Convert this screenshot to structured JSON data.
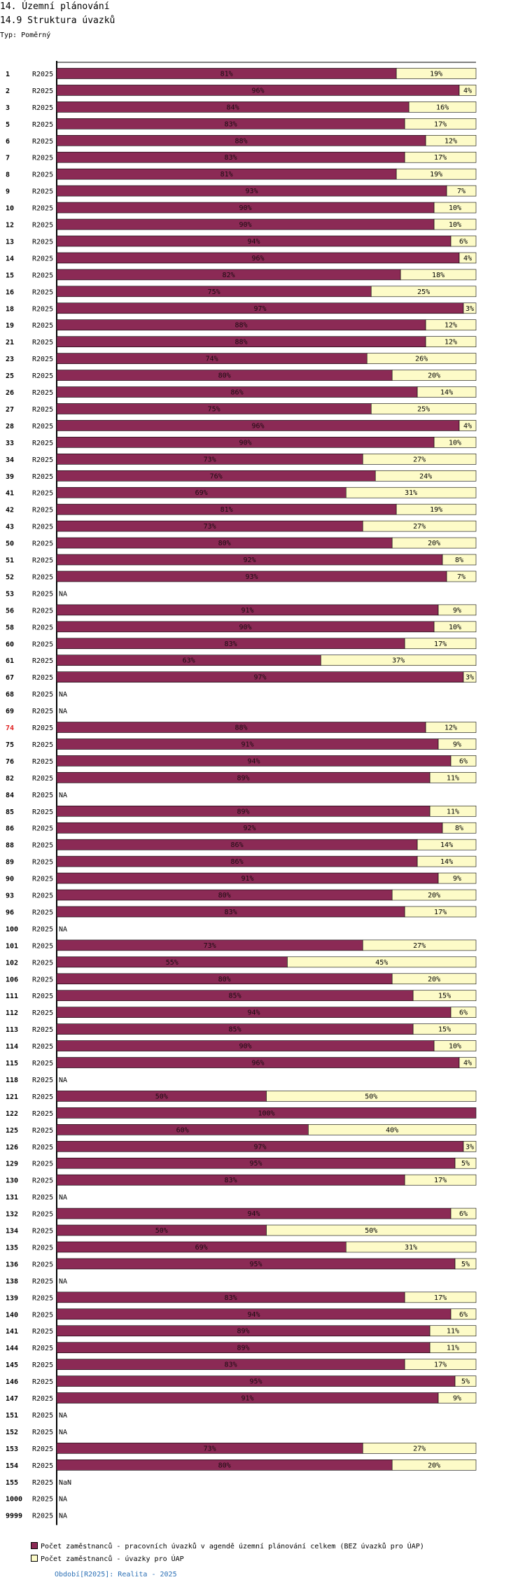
{
  "header": {
    "title": "14. Územní plánování",
    "subtitle": "14.9 Struktura úvazků",
    "type_label": "Typ: Poměrný"
  },
  "colors": {
    "series1": "#8b2a55",
    "series2": "#fdfbc8",
    "highlight_label": "#e02020",
    "footer": "#2a6fb5",
    "axis": "#000000"
  },
  "chart_data": {
    "type": "bar",
    "orientation": "horizontal",
    "stacked": "percent",
    "title": "14.9 Struktura úvazků",
    "xlim": [
      0,
      100
    ],
    "period": "R2025",
    "highlight_category": "74",
    "series": [
      {
        "name": "Počet zaměstnanců - pracovních úvazků v agendě územní plánování celkem (BEZ úvazků pro ÚAP)"
      },
      {
        "name": "Počet zaměstnanců - úvazky pro ÚAP"
      }
    ],
    "rows": [
      {
        "category": "1",
        "period": "R2025",
        "values": [
          81,
          19
        ]
      },
      {
        "category": "2",
        "period": "R2025",
        "values": [
          96,
          4
        ]
      },
      {
        "category": "3",
        "period": "R2025",
        "values": [
          84,
          16
        ]
      },
      {
        "category": "5",
        "period": "R2025",
        "values": [
          83,
          17
        ]
      },
      {
        "category": "6",
        "period": "R2025",
        "values": [
          88,
          12
        ]
      },
      {
        "category": "7",
        "period": "R2025",
        "values": [
          83,
          17
        ]
      },
      {
        "category": "8",
        "period": "R2025",
        "values": [
          81,
          19
        ]
      },
      {
        "category": "9",
        "period": "R2025",
        "values": [
          93,
          7
        ]
      },
      {
        "category": "10",
        "period": "R2025",
        "values": [
          90,
          10
        ]
      },
      {
        "category": "12",
        "period": "R2025",
        "values": [
          90,
          10
        ]
      },
      {
        "category": "13",
        "period": "R2025",
        "values": [
          94,
          6
        ]
      },
      {
        "category": "14",
        "period": "R2025",
        "values": [
          96,
          4
        ]
      },
      {
        "category": "15",
        "period": "R2025",
        "values": [
          82,
          18
        ]
      },
      {
        "category": "16",
        "period": "R2025",
        "values": [
          75,
          25
        ]
      },
      {
        "category": "18",
        "period": "R2025",
        "values": [
          97,
          3
        ]
      },
      {
        "category": "19",
        "period": "R2025",
        "values": [
          88,
          12
        ]
      },
      {
        "category": "21",
        "period": "R2025",
        "values": [
          88,
          12
        ]
      },
      {
        "category": "23",
        "period": "R2025",
        "values": [
          74,
          26
        ]
      },
      {
        "category": "25",
        "period": "R2025",
        "values": [
          80,
          20
        ]
      },
      {
        "category": "26",
        "period": "R2025",
        "values": [
          86,
          14
        ]
      },
      {
        "category": "27",
        "period": "R2025",
        "values": [
          75,
          25
        ]
      },
      {
        "category": "28",
        "period": "R2025",
        "values": [
          96,
          4
        ]
      },
      {
        "category": "33",
        "period": "R2025",
        "values": [
          90,
          10
        ]
      },
      {
        "category": "34",
        "period": "R2025",
        "values": [
          73,
          27
        ]
      },
      {
        "category": "39",
        "period": "R2025",
        "values": [
          76,
          24
        ]
      },
      {
        "category": "41",
        "period": "R2025",
        "values": [
          69,
          31
        ]
      },
      {
        "category": "42",
        "period": "R2025",
        "values": [
          81,
          19
        ]
      },
      {
        "category": "43",
        "period": "R2025",
        "values": [
          73,
          27
        ]
      },
      {
        "category": "50",
        "period": "R2025",
        "values": [
          80,
          20
        ]
      },
      {
        "category": "51",
        "period": "R2025",
        "values": [
          92,
          8
        ]
      },
      {
        "category": "52",
        "period": "R2025",
        "values": [
          93,
          7
        ]
      },
      {
        "category": "53",
        "period": "R2025",
        "values": null,
        "na": "NA"
      },
      {
        "category": "56",
        "period": "R2025",
        "values": [
          91,
          9
        ]
      },
      {
        "category": "58",
        "period": "R2025",
        "values": [
          90,
          10
        ]
      },
      {
        "category": "60",
        "period": "R2025",
        "values": [
          83,
          17
        ]
      },
      {
        "category": "61",
        "period": "R2025",
        "values": [
          63,
          37
        ]
      },
      {
        "category": "67",
        "period": "R2025",
        "values": [
          97,
          3
        ]
      },
      {
        "category": "68",
        "period": "R2025",
        "values": null,
        "na": "NA"
      },
      {
        "category": "69",
        "period": "R2025",
        "values": null,
        "na": "NA"
      },
      {
        "category": "74",
        "period": "R2025",
        "values": [
          88,
          12
        ]
      },
      {
        "category": "75",
        "period": "R2025",
        "values": [
          91,
          9
        ]
      },
      {
        "category": "76",
        "period": "R2025",
        "values": [
          94,
          6
        ]
      },
      {
        "category": "82",
        "period": "R2025",
        "values": [
          89,
          11
        ]
      },
      {
        "category": "84",
        "period": "R2025",
        "values": null,
        "na": "NA"
      },
      {
        "category": "85",
        "period": "R2025",
        "values": [
          89,
          11
        ]
      },
      {
        "category": "86",
        "period": "R2025",
        "values": [
          92,
          8
        ]
      },
      {
        "category": "88",
        "period": "R2025",
        "values": [
          86,
          14
        ]
      },
      {
        "category": "89",
        "period": "R2025",
        "values": [
          86,
          14
        ]
      },
      {
        "category": "90",
        "period": "R2025",
        "values": [
          91,
          9
        ]
      },
      {
        "category": "93",
        "period": "R2025",
        "values": [
          80,
          20
        ]
      },
      {
        "category": "96",
        "period": "R2025",
        "values": [
          83,
          17
        ]
      },
      {
        "category": "100",
        "period": "R2025",
        "values": null,
        "na": "NA"
      },
      {
        "category": "101",
        "period": "R2025",
        "values": [
          73,
          27
        ]
      },
      {
        "category": "102",
        "period": "R2025",
        "values": [
          55,
          45
        ]
      },
      {
        "category": "106",
        "period": "R2025",
        "values": [
          80,
          20
        ]
      },
      {
        "category": "111",
        "period": "R2025",
        "values": [
          85,
          15
        ]
      },
      {
        "category": "112",
        "period": "R2025",
        "values": [
          94,
          6
        ]
      },
      {
        "category": "113",
        "period": "R2025",
        "values": [
          85,
          15
        ]
      },
      {
        "category": "114",
        "period": "R2025",
        "values": [
          90,
          10
        ]
      },
      {
        "category": "115",
        "period": "R2025",
        "values": [
          96,
          4
        ]
      },
      {
        "category": "118",
        "period": "R2025",
        "values": null,
        "na": "NA"
      },
      {
        "category": "121",
        "period": "R2025",
        "values": [
          50,
          50
        ]
      },
      {
        "category": "122",
        "period": "R2025",
        "values": [
          100,
          0
        ]
      },
      {
        "category": "125",
        "period": "R2025",
        "values": [
          60,
          40
        ]
      },
      {
        "category": "126",
        "period": "R2025",
        "values": [
          97,
          3
        ]
      },
      {
        "category": "129",
        "period": "R2025",
        "values": [
          95,
          5
        ]
      },
      {
        "category": "130",
        "period": "R2025",
        "values": [
          83,
          17
        ]
      },
      {
        "category": "131",
        "period": "R2025",
        "values": null,
        "na": "NA"
      },
      {
        "category": "132",
        "period": "R2025",
        "values": [
          94,
          6
        ]
      },
      {
        "category": "134",
        "period": "R2025",
        "values": [
          50,
          50
        ]
      },
      {
        "category": "135",
        "period": "R2025",
        "values": [
          69,
          31
        ]
      },
      {
        "category": "136",
        "period": "R2025",
        "values": [
          95,
          5
        ]
      },
      {
        "category": "138",
        "period": "R2025",
        "values": null,
        "na": "NA"
      },
      {
        "category": "139",
        "period": "R2025",
        "values": [
          83,
          17
        ]
      },
      {
        "category": "140",
        "period": "R2025",
        "values": [
          94,
          6
        ]
      },
      {
        "category": "141",
        "period": "R2025",
        "values": [
          89,
          11
        ]
      },
      {
        "category": "144",
        "period": "R2025",
        "values": [
          89,
          11
        ]
      },
      {
        "category": "145",
        "period": "R2025",
        "values": [
          83,
          17
        ]
      },
      {
        "category": "146",
        "period": "R2025",
        "values": [
          95,
          5
        ]
      },
      {
        "category": "147",
        "period": "R2025",
        "values": [
          91,
          9
        ]
      },
      {
        "category": "151",
        "period": "R2025",
        "values": null,
        "na": "NA"
      },
      {
        "category": "152",
        "period": "R2025",
        "values": null,
        "na": "NA"
      },
      {
        "category": "153",
        "period": "R2025",
        "values": [
          73,
          27
        ]
      },
      {
        "category": "154",
        "period": "R2025",
        "values": [
          80,
          20
        ]
      },
      {
        "category": "155",
        "period": "R2025",
        "values": null,
        "na": "NaN"
      },
      {
        "category": "1000",
        "period": "R2025",
        "values": null,
        "na": "NA"
      },
      {
        "category": "9999",
        "period": "R2025",
        "values": null,
        "na": "NA"
      }
    ]
  },
  "legend": {
    "items": [
      "Počet zaměstnanců - pracovních úvazků v agendě územní plánování celkem (BEZ úvazků pro ÚAP)",
      "Počet zaměstnanců - úvazky pro ÚAP"
    ]
  },
  "footer": {
    "text": "Období[R2025]: Realita - 2025"
  }
}
